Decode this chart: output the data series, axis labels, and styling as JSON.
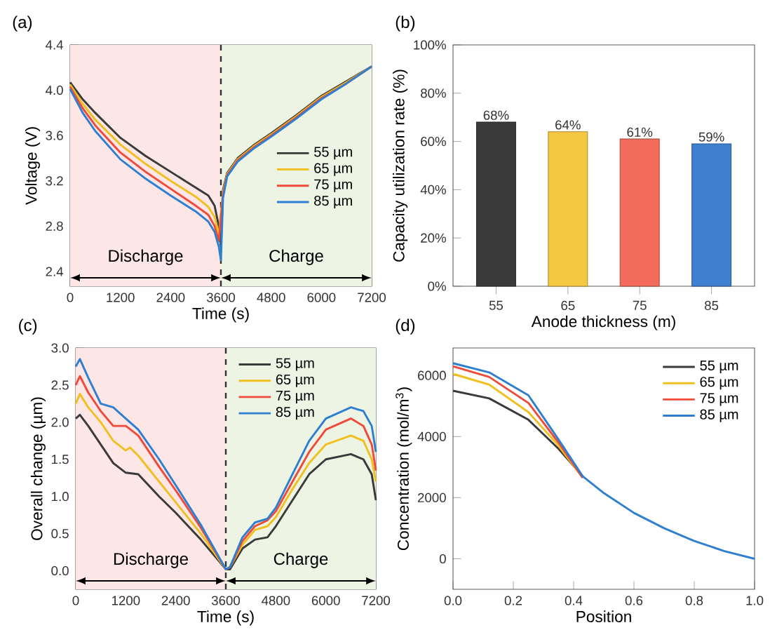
{
  "chart_data": [
    {
      "type": "line",
      "title": "(a)",
      "xlabel": "Time (s)",
      "ylabel": "Voltage (V)",
      "xlim": [
        0,
        7200
      ],
      "ylim": [
        2.27,
        4.4
      ],
      "xticks": [
        0,
        1200,
        2400,
        3600,
        4800,
        6000,
        7200
      ],
      "yticks": [
        2.4,
        2.8,
        3.2,
        3.6,
        {
          "value": 4,
          "label": "4.0"
        },
        4.4
      ],
      "legend": "right",
      "bands": [
        {
          "axis": "x",
          "from": 0,
          "to": 3600,
          "label": "Discharge",
          "color": "#fce6e6"
        },
        {
          "axis": "x",
          "from": 3600,
          "to": 7200,
          "label": "Charge",
          "color": "#edf4e4"
        }
      ],
      "ref_lines": [
        {
          "axis": "x",
          "value": 3600,
          "color": "#333333",
          "line_style": "dashed"
        }
      ],
      "series": [
        {
          "name": "55 µm",
          "color": "#3a3a3a",
          "x": [
            0,
            300,
            600,
            1200,
            1800,
            2400,
            3000,
            3300,
            3450,
            3550,
            3600,
            3650,
            3750,
            4000,
            4400,
            4800,
            5400,
            6000,
            6600,
            7200
          ],
          "values": [
            4.07,
            3.92,
            3.8,
            3.58,
            3.42,
            3.28,
            3.14,
            3.07,
            2.98,
            2.8,
            2.62,
            3.12,
            3.27,
            3.4,
            3.52,
            3.62,
            3.78,
            3.95,
            4.08,
            4.21
          ]
        },
        {
          "name": "65 µm",
          "color": "#f0c020",
          "x": [
            0,
            300,
            600,
            1200,
            1800,
            2400,
            3000,
            3300,
            3450,
            3550,
            3600,
            3650,
            3750,
            4000,
            4400,
            4800,
            5400,
            6000,
            6600,
            7200
          ],
          "values": [
            4.05,
            3.88,
            3.74,
            3.52,
            3.35,
            3.2,
            3.06,
            2.97,
            2.88,
            2.72,
            null,
            3.1,
            3.26,
            3.39,
            3.51,
            3.61,
            3.77,
            3.94,
            4.07,
            4.21
          ]
        },
        {
          "name": "75 µm",
          "color": "#f04a3a",
          "x": [
            0,
            300,
            600,
            1200,
            1800,
            2400,
            3000,
            3300,
            3450,
            3550,
            3600,
            3650,
            3750,
            4000,
            4400,
            4800,
            5400,
            6000,
            6600,
            7200
          ],
          "values": [
            4.03,
            3.84,
            3.69,
            3.45,
            3.28,
            3.13,
            2.98,
            2.9,
            2.8,
            2.67,
            null,
            3.08,
            3.25,
            3.38,
            3.5,
            3.6,
            3.76,
            3.93,
            4.06,
            4.21
          ]
        },
        {
          "name": "85 µm",
          "color": "#2f7fd0",
          "x": [
            0,
            300,
            600,
            1200,
            1800,
            2400,
            3000,
            3300,
            3450,
            3550,
            3600,
            3650,
            3750,
            4000,
            4400,
            4800,
            5400,
            6000,
            6600,
            7200
          ],
          "values": [
            4.01,
            3.8,
            3.64,
            3.39,
            3.22,
            3.07,
            2.93,
            2.84,
            2.75,
            2.62,
            2.5,
            3.05,
            3.24,
            3.37,
            3.49,
            3.59,
            3.75,
            3.92,
            4.06,
            4.21
          ]
        }
      ]
    },
    {
      "type": "bar",
      "title": "(b)",
      "xlabel": "Anode thickness (m)",
      "ylabel": "Capacity utilization rate (%)",
      "categories": [
        "55",
        "65",
        "75",
        "85"
      ],
      "values": [
        68,
        64,
        61,
        59
      ],
      "colors": [
        "#3a3a3a",
        "#f5c842",
        "#f26b5b",
        "#3f7fd0"
      ],
      "value_labels": [
        "68%",
        "64%",
        "61%",
        "59%"
      ],
      "ylim": [
        0,
        100
      ],
      "yticks": [
        {
          "value": 0,
          "label": "0%"
        },
        {
          "value": 20,
          "label": "20%"
        },
        {
          "value": 40,
          "label": "40%"
        },
        {
          "value": 60,
          "label": "60%"
        },
        {
          "value": 80,
          "label": "80%"
        },
        {
          "value": 100,
          "label": "100%"
        }
      ]
    },
    {
      "type": "line",
      "title": "(c)",
      "xlabel": "Time (s)",
      "ylabel": "Overall change (µm)",
      "xlim": [
        0,
        7200
      ],
      "ylim": [
        -0.25,
        3.0
      ],
      "xticks": [
        0,
        1200,
        2400,
        3600,
        4800,
        6000,
        7200
      ],
      "yticks": [
        {
          "value": 0,
          "label": "0.0"
        },
        0.5,
        {
          "value": 1,
          "label": "1.0"
        },
        1.5,
        {
          "value": 2,
          "label": "2.0"
        },
        2.5,
        {
          "value": 3,
          "label": "3.0"
        }
      ],
      "legend": "top",
      "bands": [
        {
          "axis": "x",
          "from": 0,
          "to": 3600,
          "label": "Discharge",
          "color": "#fce6e6"
        },
        {
          "axis": "x",
          "from": 3600,
          "to": 7200,
          "label": "Charge",
          "color": "#edf4e4"
        }
      ],
      "ref_lines": [
        {
          "axis": "x",
          "value": 3600,
          "color": "#333333",
          "line_style": "dashed"
        }
      ],
      "series": [
        {
          "name": "55 µm",
          "color": "#3a3a3a",
          "x": [
            0,
            100,
            300,
            600,
            900,
            1200,
            1500,
            2000,
            2400,
            3000,
            3600,
            3700,
            4000,
            4300,
            4600,
            4800,
            5200,
            5600,
            6000,
            6600,
            6900,
            7100,
            7200
          ],
          "values": [
            2.05,
            2.1,
            1.95,
            1.7,
            1.45,
            1.32,
            1.3,
            1.0,
            0.78,
            0.42,
            0.02,
            0.02,
            0.3,
            0.42,
            0.45,
            0.6,
            0.95,
            1.3,
            1.5,
            1.57,
            1.5,
            1.3,
            0.95
          ]
        },
        {
          "name": "65 µm",
          "color": "#f0c020",
          "x": [
            0,
            100,
            300,
            600,
            900,
            1200,
            1300,
            1500,
            2000,
            2400,
            3000,
            3600,
            3700,
            4000,
            4300,
            4600,
            4800,
            5200,
            5600,
            6000,
            6600,
            6900,
            7100,
            7200
          ],
          "values": [
            2.25,
            2.38,
            2.2,
            2.0,
            1.75,
            1.62,
            1.66,
            1.55,
            1.2,
            0.92,
            0.5,
            0.02,
            0.05,
            0.35,
            0.55,
            0.6,
            0.72,
            1.1,
            1.45,
            1.7,
            1.82,
            1.75,
            1.5,
            1.2
          ]
        },
        {
          "name": "75 µm",
          "color": "#f04a3a",
          "x": [
            0,
            100,
            300,
            600,
            900,
            1200,
            1500,
            2000,
            2400,
            3000,
            3600,
            3700,
            4000,
            4300,
            4600,
            4800,
            5200,
            5600,
            6000,
            6600,
            6900,
            7100,
            7200
          ],
          "values": [
            2.5,
            2.62,
            2.4,
            2.15,
            1.95,
            1.95,
            1.82,
            1.4,
            1.08,
            0.58,
            0.02,
            0.05,
            0.4,
            0.6,
            0.68,
            0.8,
            1.2,
            1.6,
            1.9,
            2.05,
            1.95,
            1.7,
            1.35
          ]
        },
        {
          "name": "85 µm",
          "color": "#2f7fd0",
          "x": [
            0,
            100,
            300,
            600,
            900,
            1200,
            1500,
            2000,
            2400,
            3000,
            3600,
            3700,
            4000,
            4300,
            4600,
            4800,
            5200,
            5600,
            6000,
            6600,
            6900,
            7100,
            7200
          ],
          "values": [
            2.75,
            2.85,
            2.6,
            2.25,
            2.2,
            2.05,
            1.9,
            1.5,
            1.15,
            0.62,
            0.02,
            0.05,
            0.45,
            0.65,
            0.7,
            0.85,
            1.3,
            1.75,
            2.05,
            2.2,
            2.15,
            1.95,
            1.6
          ]
        }
      ]
    },
    {
      "type": "line",
      "title": "(d)",
      "xlabel": "Position",
      "ylabel": "Concentration (mol/m$^{3}$)",
      "xlim": [
        0,
        1.0
      ],
      "ylim": [
        -1000,
        6900
      ],
      "xticks": [
        {
          "value": 0,
          "label": "0.0"
        },
        0.2,
        0.4,
        0.6,
        0.8,
        {
          "value": 1,
          "label": "1.0"
        }
      ],
      "yticks": [
        0,
        2000,
        4000,
        6000
      ],
      "legend": "top right",
      "series": [
        {
          "name": "55 µm",
          "color": "#3a3a3a",
          "x": [
            0,
            0.12,
            0.25,
            0.35,
            0.43
          ],
          "values": [
            5500,
            5250,
            4550,
            3600,
            2700
          ]
        },
        {
          "name": "65 µm",
          "color": "#f0c020",
          "x": [
            0,
            0.12,
            0.25,
            0.35,
            0.43
          ],
          "values": [
            6050,
            5700,
            4800,
            3700,
            2650
          ]
        },
        {
          "name": "75 µm",
          "color": "#f04a3a",
          "x": [
            0,
            0.12,
            0.25,
            0.35,
            0.43
          ],
          "values": [
            6300,
            5950,
            5100,
            3800,
            2650
          ]
        },
        {
          "name": "85 µm",
          "color": "#2f7fd0",
          "x": [
            0,
            0.12,
            0.25,
            0.35,
            0.43,
            0.5,
            0.6,
            0.7,
            0.8,
            0.9,
            1.0
          ],
          "values": [
            6400,
            6100,
            5350,
            3900,
            2700,
            2150,
            1500,
            1000,
            580,
            250,
            0
          ]
        }
      ]
    }
  ]
}
